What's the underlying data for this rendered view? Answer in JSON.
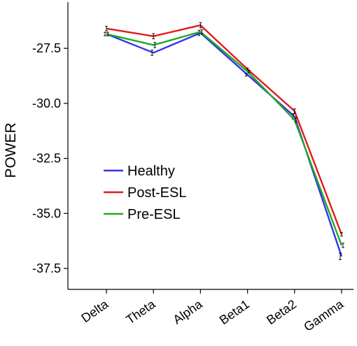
{
  "chart_data": {
    "type": "line",
    "title": "",
    "xlabel": "",
    "ylabel": "POWER",
    "categories": [
      "Delta",
      "Theta",
      "Alpha",
      "Beta1",
      "Beta2",
      "Gamma"
    ],
    "yticks": [
      "-27.5",
      "-30.0",
      "-32.5",
      "-35.0",
      "-37.5"
    ],
    "ytick_values": [
      -27.5,
      -30.0,
      -32.5,
      -35.0,
      -37.5
    ],
    "ylim": [
      -38.45,
      -25.4
    ],
    "grid": false,
    "legend_position": "center-left",
    "error_bars": true,
    "series": [
      {
        "name": "Healthy",
        "color": "#3333ee",
        "values": [
          -26.85,
          -27.7,
          -26.8,
          -28.7,
          -30.6,
          -36.95
        ],
        "err": [
          0.08,
          0.12,
          0.12,
          0.06,
          0.12,
          0.15
        ]
      },
      {
        "name": "Post-ESL",
        "color": "#e31a1c",
        "values": [
          -26.6,
          -26.95,
          -26.45,
          -28.45,
          -30.35,
          -35.95
        ],
        "err": [
          0.1,
          0.12,
          0.12,
          0.06,
          0.1,
          0.08
        ]
      },
      {
        "name": "Pre-ESL",
        "color": "#22aa22",
        "values": [
          -26.85,
          -27.35,
          -26.75,
          -28.55,
          -30.75,
          -36.45
        ],
        "err": [
          0.08,
          0.12,
          0.1,
          0.06,
          0.1,
          0.1
        ]
      }
    ]
  }
}
